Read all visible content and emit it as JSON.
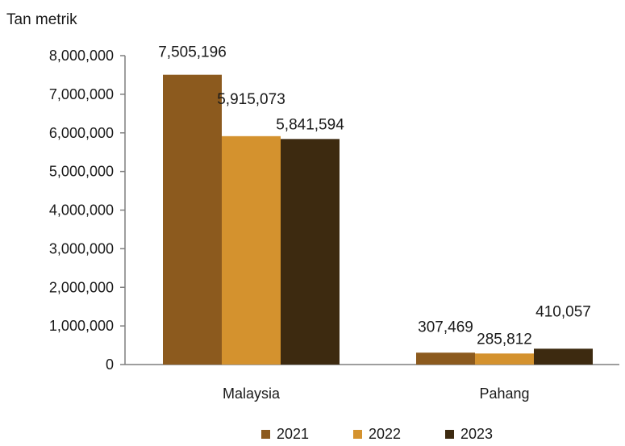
{
  "chart_data": {
    "type": "bar",
    "unit_label": "Tan  metrik",
    "categories": [
      "Malaysia",
      "Pahang"
    ],
    "series": [
      {
        "name": "2021",
        "color": "#8c5a1e",
        "values": [
          7505196,
          307469
        ],
        "labels": [
          "7,505,196",
          "307,469"
        ]
      },
      {
        "name": "2022",
        "color": "#d4922e",
        "values": [
          5915073,
          285812
        ],
        "labels": [
          "5,915,073",
          "285,812"
        ]
      },
      {
        "name": "2023",
        "color": "#3d2a10",
        "values": [
          5841594,
          410057
        ],
        "labels": [
          "5,841,594",
          "410,057"
        ]
      }
    ],
    "ylim": [
      0,
      8000000
    ],
    "yticks": [
      0,
      1000000,
      2000000,
      3000000,
      4000000,
      5000000,
      6000000,
      7000000,
      8000000
    ],
    "ytick_labels": [
      "0",
      "1,000,000",
      "2,000,000",
      "3,000,000",
      "4,000,000",
      "5,000,000",
      "6,000,000",
      "7,000,000",
      "8,000,000"
    ],
    "grid": false,
    "legend_position": "bottom"
  }
}
